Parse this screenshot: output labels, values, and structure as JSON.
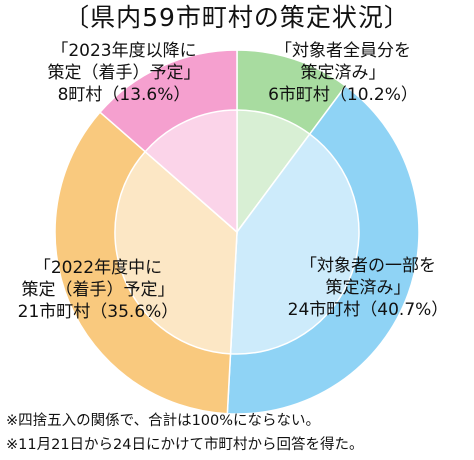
{
  "title": "〔県内59市町村の策定状況〕",
  "notes": [
    "※四捨五入の関係で、合計は100%にならない。",
    "※11月21日から24日にかけて市町村から回答を得た。"
  ],
  "colors": {
    "done_all": "#a8dca0",
    "done_part": "#8fd3f5",
    "in_2022": "#f9c97e",
    "from_2023": "#f5a0cf"
  },
  "chart_data": {
    "type": "pie",
    "title": "〔県内59市町村の策定状況〕",
    "total": 59,
    "slices": [
      {
        "label_lines": [
          "「対象者全員分を",
          "策定済み」",
          "6市町村（10.2%）"
        ],
        "count": 6,
        "percent": 10.2,
        "color": "#a8dca0"
      },
      {
        "label_lines": [
          "「対象者の一部を",
          "策定済み」",
          "24市町村（40.7%）"
        ],
        "count": 24,
        "percent": 40.7,
        "color": "#8fd3f5"
      },
      {
        "label_lines": [
          "「2022年度中に",
          "策定（着手）予定」",
          "21市町村（35.6%）"
        ],
        "count": 21,
        "percent": 35.6,
        "color": "#f9c97e"
      },
      {
        "label_lines": [
          "「2023年度以降に",
          "策定（着手）予定」",
          "8町村（13.6%）"
        ],
        "count": 8,
        "percent": 13.6,
        "color": "#f5a0cf"
      }
    ]
  }
}
